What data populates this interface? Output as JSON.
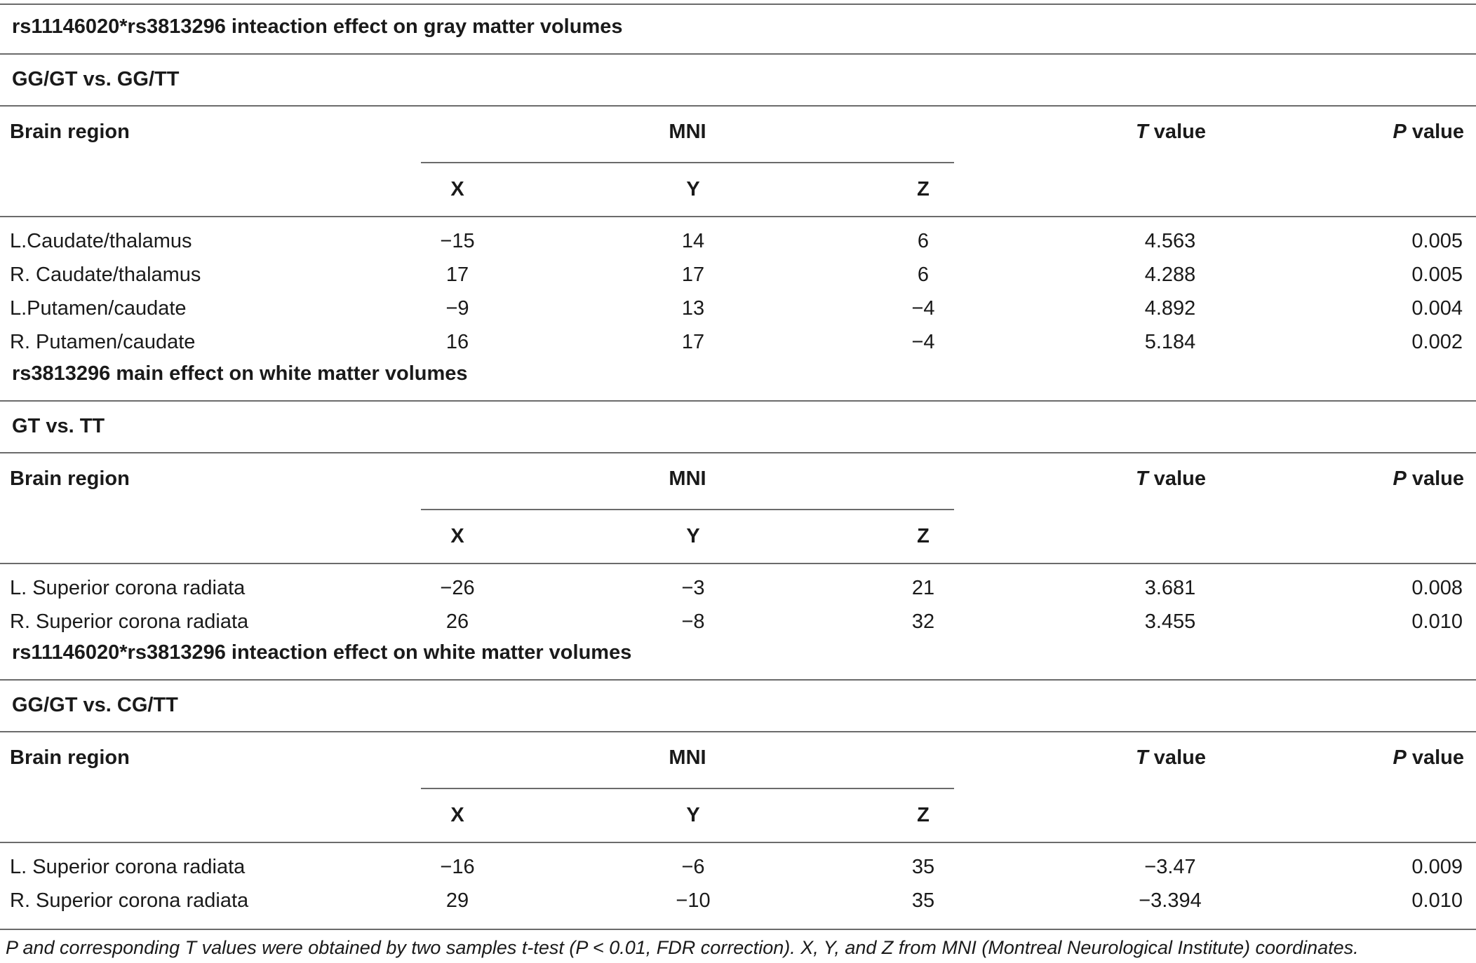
{
  "sections": [
    {
      "title": "rs11146020*rs3813296 inteaction effect on gray matter volumes",
      "comparison": "GG/GT vs. GG/TT",
      "header": {
        "region": "Brain region",
        "mni": "MNI",
        "t_italic": "T",
        "t_rest": " value",
        "p_italic": "P",
        "p_rest": " value",
        "x": "X",
        "y": "Y",
        "z": "Z"
      },
      "rows": [
        {
          "region": "L.Caudate/thalamus",
          "x": "−15",
          "y": "14",
          "z": "6",
          "t": "4.563",
          "p": "0.005"
        },
        {
          "region": "R. Caudate/thalamus",
          "x": "17",
          "y": "17",
          "z": "6",
          "t": "4.288",
          "p": "0.005"
        },
        {
          "region": "L.Putamen/caudate",
          "x": "−9",
          "y": "13",
          "z": "−4",
          "t": "4.892",
          "p": "0.004"
        },
        {
          "region": "R. Putamen/caudate",
          "x": "16",
          "y": "17",
          "z": "−4",
          "t": "5.184",
          "p": "0.002"
        }
      ]
    },
    {
      "title": "rs3813296 main effect on white matter volumes",
      "comparison": "GT vs. TT",
      "header": {
        "region": "Brain region",
        "mni": "MNI",
        "t_italic": "T",
        "t_rest": " value",
        "p_italic": "P",
        "p_rest": " value",
        "x": "X",
        "y": "Y",
        "z": "Z"
      },
      "rows": [
        {
          "region": "L. Superior corona radiata",
          "x": "−26",
          "y": "−3",
          "z": "21",
          "t": "3.681",
          "p": "0.008"
        },
        {
          "region": "R. Superior corona radiata",
          "x": "26",
          "y": "−8",
          "z": "32",
          "t": "3.455",
          "p": "0.010"
        }
      ]
    },
    {
      "title": "rs11146020*rs3813296 inteaction effect on white matter volumes",
      "comparison": "GG/GT vs. CG/TT",
      "header": {
        "region": "Brain region",
        "mni": "MNI",
        "t_italic": "T",
        "t_rest": " value",
        "p_italic": "P",
        "p_rest": " value",
        "x": "X",
        "y": "Y",
        "z": "Z"
      },
      "rows": [
        {
          "region": "L. Superior corona radiata",
          "x": "−16",
          "y": "−6",
          "z": "35",
          "t": "−3.47",
          "p": "0.009"
        },
        {
          "region": "R. Superior corona radiata",
          "x": "29",
          "y": "−10",
          "z": "35",
          "t": "−3.394",
          "p": "0.010"
        }
      ]
    }
  ],
  "footnote": "P and corresponding T values were obtained by two samples t-test (P < 0.01, FDR correction). X, Y, and Z from MNI (Montreal Neurological Institute) coordinates."
}
